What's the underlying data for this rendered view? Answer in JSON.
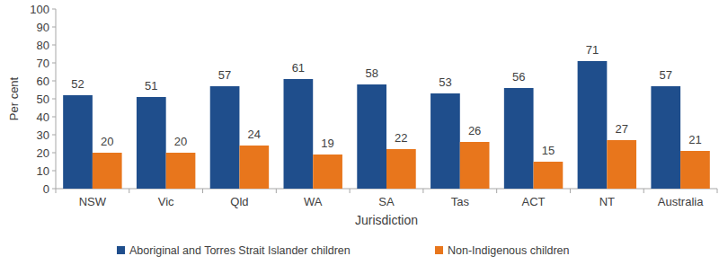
{
  "chart_data": {
    "type": "bar",
    "x_label": "Jurisdiction",
    "y_label": "Per cent",
    "categories": [
      "NSW",
      "Vic",
      "Qld",
      "WA",
      "SA",
      "Tas",
      "ACT",
      "NT",
      "Australia"
    ],
    "series": [
      {
        "name": "Aboriginal and Torres Strait Islander children",
        "color": "#1f4e8c",
        "values": [
          52,
          51,
          57,
          61,
          58,
          53,
          56,
          71,
          57
        ]
      },
      {
        "name": "Non-Indigenous children",
        "color": "#e8761c",
        "values": [
          20,
          20,
          24,
          19,
          22,
          26,
          15,
          27,
          21
        ]
      }
    ],
    "ylim": [
      0,
      100
    ],
    "yticks": [
      0,
      10,
      20,
      30,
      40,
      50,
      60,
      70,
      80,
      90,
      100
    ],
    "grid": false,
    "data_labels": true,
    "legend": "bottom"
  }
}
